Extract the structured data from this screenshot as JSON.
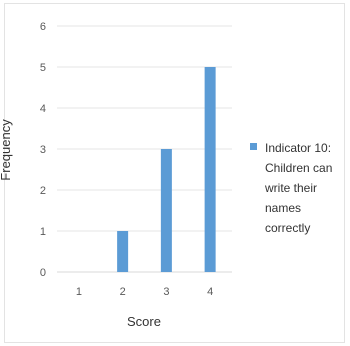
{
  "chart_data": {
    "type": "bar",
    "categories": [
      "1",
      "2",
      "3",
      "4"
    ],
    "series": [
      {
        "name": "Indicator 10: Children can write their names correctly",
        "values": [
          0,
          1,
          3,
          5
        ],
        "color": "#5B9BD5"
      }
    ],
    "title": "",
    "xlabel": "Score",
    "ylabel": "Frequency",
    "ylim": [
      0,
      6
    ],
    "yticks": [
      "0",
      "1",
      "2",
      "3",
      "4",
      "5",
      "6"
    ],
    "grid": true,
    "legend": {
      "placement": "right",
      "lines": [
        "Indicator 10:",
        "Children can",
        "write their",
        "names",
        "correctly"
      ]
    }
  }
}
